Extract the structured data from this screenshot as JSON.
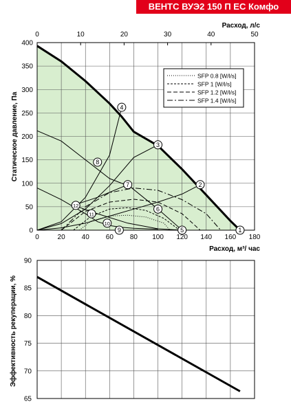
{
  "header": {
    "title": "ВЕНТС ВУЭ2 150 П ЕС Комфо"
  },
  "colors": {
    "brand": "#e2001a",
    "fill": "#d8eecf",
    "axis": "#000000",
    "grid": "#555555"
  },
  "chart_data": [
    {
      "type": "line",
      "xlabel": "Расход, м³/ час",
      "x2label": "Расход, л/с",
      "ylabel": "Статическое давление, Па",
      "xlim": [
        0,
        180
      ],
      "x2lim": [
        0,
        50
      ],
      "ylim": [
        0,
        400
      ],
      "xticks": [
        0,
        20,
        40,
        60,
        80,
        100,
        120,
        140,
        160,
        180
      ],
      "x2ticks": [
        0,
        10,
        20,
        30,
        40,
        50
      ],
      "yticks": [
        0,
        50,
        100,
        150,
        200,
        250,
        300,
        350,
        400
      ],
      "grid": true,
      "legend_position": "top-right",
      "fan_curve": {
        "x": [
          0,
          20,
          40,
          60,
          70,
          80,
          100,
          120,
          140,
          160,
          168
        ],
        "y": [
          393,
          360,
          318,
          270,
          242,
          210,
          180,
          130,
          75,
          20,
          0
        ]
      },
      "system_curves": [
        {
          "x": [
            0,
            20,
            40,
            60,
            70
          ],
          "y": [
            0,
            18,
            70,
            160,
            262
          ]
        },
        {
          "x": [
            0,
            20,
            40,
            60,
            80,
            100
          ],
          "y": [
            0,
            14,
            45,
            95,
            155,
            182
          ]
        },
        {
          "x": [
            0,
            20,
            40,
            60,
            80,
            100,
            120,
            135
          ],
          "y": [
            0,
            5,
            15,
            30,
            45,
            60,
            77,
            97
          ]
        }
      ],
      "pressure_curves": [
        {
          "x": [
            0,
            20,
            40,
            50,
            60,
            75
          ],
          "y": [
            212,
            190,
            150,
            130,
            110,
            95
          ]
        },
        {
          "x": [
            0,
            20,
            40,
            50,
            60,
            70,
            80,
            100
          ],
          "y": [
            90,
            65,
            35,
            18,
            10,
            6,
            4,
            2
          ]
        },
        {
          "x": [
            30,
            50,
            75,
            100,
            120
          ],
          "y": [
            53,
            70,
            97,
            45,
            0
          ]
        },
        {
          "x": [
            30,
            50,
            75,
            100,
            120
          ],
          "y": [
            53,
            35,
            15,
            3,
            0
          ]
        }
      ],
      "series": [
        {
          "name": "SFP 0.8 [W/l/s]",
          "x": [
            35,
            45,
            60,
            75,
            90,
            105,
            110
          ],
          "y": [
            0,
            20,
            30,
            32,
            28,
            15,
            0
          ]
        },
        {
          "name": "SFP 1 [W/l/s]",
          "x": [
            30,
            45,
            60,
            75,
            90,
            105,
            118
          ],
          "y": [
            0,
            30,
            45,
            48,
            42,
            25,
            0
          ]
        },
        {
          "name": "SFP 1.2 [W/l/s]",
          "x": [
            20,
            40,
            60,
            80,
            100,
            120,
            135
          ],
          "y": [
            0,
            40,
            60,
            66,
            60,
            35,
            0
          ]
        },
        {
          "name": "SFP 1.4 [W/l/s]",
          "x": [
            20,
            40,
            60,
            80,
            100,
            120,
            140,
            152
          ],
          "y": [
            0,
            50,
            80,
            90,
            85,
            65,
            35,
            0
          ]
        }
      ],
      "points": [
        {
          "label": "1",
          "x": 168,
          "y": 0
        },
        {
          "label": "2",
          "x": 135,
          "y": 97
        },
        {
          "label": "3",
          "x": 100,
          "y": 182
        },
        {
          "label": "4",
          "x": 70,
          "y": 262
        },
        {
          "label": "5",
          "x": 120,
          "y": 0
        },
        {
          "label": "6",
          "x": 100,
          "y": 45
        },
        {
          "label": "7",
          "x": 75,
          "y": 97
        },
        {
          "label": "8",
          "x": 50,
          "y": 145
        },
        {
          "label": "9",
          "x": 68,
          "y": 0
        },
        {
          "label": "10",
          "x": 58,
          "y": 15
        },
        {
          "label": "11",
          "x": 45,
          "y": 35
        },
        {
          "label": "12",
          "x": 32,
          "y": 53
        }
      ]
    },
    {
      "type": "line",
      "xlabel": "",
      "ylabel": "Эффективность рекуперации, %",
      "xlim": [
        0,
        180
      ],
      "ylim": [
        65,
        90
      ],
      "yticks": [
        65,
        70,
        75,
        80,
        85,
        90
      ],
      "grid": true,
      "series": [
        {
          "x": [
            0,
            168
          ],
          "y": [
            87,
            66.3
          ]
        }
      ]
    }
  ]
}
